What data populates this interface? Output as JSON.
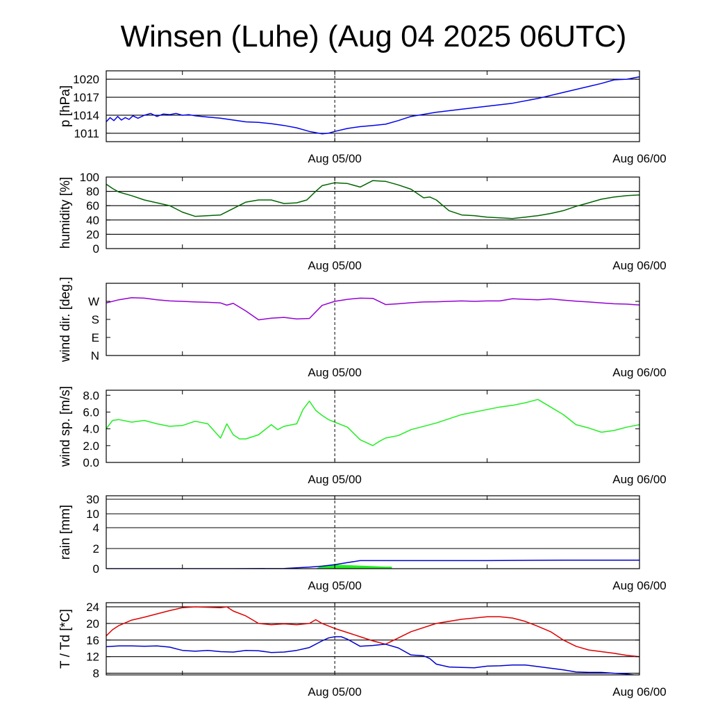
{
  "title": "Winsen (Luhe) (Aug 04 2025 06UTC)",
  "x_tick_labels": [
    "Aug 05/00",
    "Aug 06/00"
  ],
  "chart_data": [
    {
      "id": "pressure",
      "type": "line",
      "ylabel": "p [hPa]",
      "ylim": [
        1009.6,
        1021.4
      ],
      "yticks": [
        1011,
        1014,
        1017,
        1020
      ],
      "ytick_labels": [
        "1011",
        "1014",
        "1017",
        "1020"
      ],
      "gridlines": [
        1011,
        1014,
        1017,
        1020
      ],
      "x_unit": "hours since Aug 04 06UTC",
      "xlim": [
        0,
        42
      ],
      "series": [
        {
          "color": "#0000ee",
          "x": [
            0,
            0.3,
            0.6,
            0.9,
            1.2,
            1.5,
            1.8,
            2.1,
            2.5,
            3,
            3.5,
            4,
            4.5,
            5,
            5.5,
            6,
            6.5,
            7,
            8,
            9,
            10,
            11,
            12,
            13,
            14,
            15,
            15.5,
            16,
            16.5,
            17,
            17.5,
            18,
            19,
            20,
            21,
            22,
            23,
            24,
            26,
            28,
            30,
            32,
            34,
            36,
            38,
            39,
            40,
            41,
            42
          ],
          "y": [
            1012.9,
            1013.6,
            1013.1,
            1013.8,
            1013.2,
            1013.6,
            1013.3,
            1013.9,
            1013.5,
            1014.0,
            1014.3,
            1013.8,
            1014.2,
            1014.1,
            1014.3,
            1014.0,
            1014.1,
            1013.9,
            1013.7,
            1013.5,
            1013.2,
            1012.9,
            1012.8,
            1012.6,
            1012.3,
            1011.9,
            1011.6,
            1011.3,
            1011.1,
            1010.9,
            1011.0,
            1011.3,
            1011.8,
            1012.1,
            1012.3,
            1012.5,
            1013.1,
            1013.8,
            1014.5,
            1015.0,
            1015.5,
            1016.0,
            1016.8,
            1017.8,
            1018.8,
            1019.3,
            1019.9,
            1020.0,
            1020.4
          ]
        }
      ]
    },
    {
      "id": "humidity",
      "type": "line",
      "ylabel": "humidity [%]",
      "ylim": [
        0,
        100
      ],
      "yticks": [
        0,
        20,
        40,
        60,
        80,
        100
      ],
      "ytick_labels": [
        "0",
        "20",
        "40",
        "60",
        "80",
        "100"
      ],
      "gridlines": [
        20,
        40,
        60,
        80
      ],
      "x_unit": "hours since Aug 04 06UTC",
      "xlim": [
        0,
        42
      ],
      "series": [
        {
          "color": "#006400",
          "x": [
            0,
            0.5,
            1,
            2,
            3,
            4,
            5,
            6,
            7,
            8,
            9,
            10,
            11,
            12,
            13,
            14,
            15,
            15.8,
            16.5,
            17,
            18,
            19,
            20,
            21,
            22,
            23,
            24,
            25,
            25.5,
            26,
            27,
            28,
            29,
            30,
            31,
            32,
            33,
            34,
            35,
            36,
            37,
            38,
            39,
            40,
            41,
            42
          ],
          "y": [
            90,
            84,
            79,
            74,
            68,
            64,
            60,
            51,
            45,
            46,
            47,
            56,
            65,
            68,
            68,
            63,
            64,
            68,
            80,
            88,
            92,
            91,
            86,
            95,
            94,
            89,
            83,
            71,
            72,
            68,
            53,
            47,
            46,
            44,
            43,
            42,
            44,
            46,
            49,
            53,
            59,
            64,
            69,
            72,
            74,
            75
          ]
        }
      ]
    },
    {
      "id": "wind_direction",
      "type": "line",
      "ylabel": "wind dir. [deg.]",
      "ylim": [
        0,
        360
      ],
      "yticks": [
        0,
        90,
        180,
        270
      ],
      "ytick_labels": [
        "N",
        "E",
        "S",
        "W"
      ],
      "gridlines": [],
      "x_unit": "hours since Aug 04 06UTC",
      "xlim": [
        0,
        42
      ],
      "series": [
        {
          "color": "#9400d3",
          "x": [
            0,
            1,
            2,
            3,
            4,
            5,
            6,
            7,
            8,
            9,
            9.5,
            10,
            11,
            12,
            13,
            14,
            15,
            16,
            17,
            18,
            19,
            20,
            21,
            22,
            23,
            24,
            25,
            26,
            27,
            28,
            29,
            30,
            31,
            32,
            33,
            34,
            35,
            36,
            37,
            38,
            39,
            40,
            41,
            42
          ],
          "y": [
            262,
            278,
            288,
            286,
            278,
            272,
            270,
            267,
            265,
            262,
            251,
            260,
            222,
            178,
            186,
            190,
            182,
            185,
            250,
            270,
            280,
            286,
            285,
            254,
            258,
            263,
            267,
            268,
            270,
            272,
            270,
            272,
            272,
            283,
            280,
            278,
            282,
            276,
            271,
            267,
            262,
            258,
            256,
            252
          ]
        }
      ]
    },
    {
      "id": "wind_speed",
      "type": "line",
      "ylabel": "wind sp. [m/s]",
      "ylim": [
        0,
        8.6
      ],
      "yticks": [
        0,
        2,
        4,
        6,
        8
      ],
      "ytick_labels": [
        "0.0",
        "2.0",
        "4.0",
        "6.0",
        "8.0"
      ],
      "gridlines": [],
      "x_unit": "hours since Aug 04 06UTC",
      "xlim": [
        0,
        42
      ],
      "series": [
        {
          "color": "#22ee22",
          "x": [
            0,
            0.5,
            1,
            2,
            3,
            4,
            5,
            6,
            7,
            8,
            9,
            9.5,
            10,
            10.5,
            11,
            12,
            13,
            13.5,
            14,
            15,
            15.5,
            16,
            16.5,
            17,
            17.5,
            18,
            19,
            20,
            21,
            21.5,
            22,
            23,
            24,
            26,
            28,
            30,
            31,
            32,
            33,
            34,
            35,
            36,
            37,
            38,
            39,
            40,
            41,
            42
          ],
          "y": [
            4.0,
            5.0,
            5.1,
            4.8,
            5.0,
            4.6,
            4.3,
            4.4,
            4.9,
            4.6,
            2.9,
            4.6,
            3.3,
            2.8,
            2.8,
            3.3,
            4.5,
            3.9,
            4.3,
            4.6,
            6.3,
            7.3,
            6.2,
            5.6,
            5.1,
            4.8,
            4.2,
            2.7,
            2.0,
            2.5,
            2.9,
            3.2,
            3.9,
            4.7,
            5.7,
            6.3,
            6.6,
            6.8,
            7.1,
            7.5,
            6.6,
            5.7,
            4.5,
            4.1,
            3.6,
            3.8,
            4.2,
            4.5
          ]
        }
      ]
    },
    {
      "id": "rain",
      "type": "area",
      "ylabel": "rain [mm]",
      "scale": "nonlinear",
      "yticks": [
        0,
        2,
        4,
        10,
        30
      ],
      "ytick_labels": [
        "0",
        "2",
        "4",
        "10",
        "30"
      ],
      "gridlines": [
        2,
        4,
        10,
        30
      ],
      "x_unit": "hours since Aug 04 06UTC",
      "xlim": [
        0,
        42
      ],
      "series": [
        {
          "type": "area",
          "color": "#22ee22",
          "x": [
            16.5,
            17,
            18,
            19,
            20,
            21,
            22,
            22.5,
            22.5
          ],
          "y": [
            0,
            0.3,
            0.4,
            0.35,
            0.3,
            0.25,
            0.2,
            0.2,
            0
          ]
        },
        {
          "type": "line",
          "color": "#0000cd",
          "x": [
            0,
            10,
            14,
            16,
            17,
            18,
            19,
            20,
            21,
            22,
            24,
            30,
            36,
            42
          ],
          "y": [
            0,
            0,
            0.02,
            0.15,
            0.25,
            0.4,
            0.6,
            0.8,
            0.8,
            0.8,
            0.8,
            0.8,
            0.85,
            0.85
          ]
        }
      ]
    },
    {
      "id": "temperature",
      "type": "line",
      "ylabel": "T / Td [*C]",
      "ylim": [
        7.6,
        25
      ],
      "yticks": [
        8,
        12,
        16,
        20,
        24
      ],
      "ytick_labels": [
        "8",
        "12",
        "16",
        "20",
        "24"
      ],
      "gridlines": [
        8,
        12,
        16,
        20,
        24
      ],
      "x_unit": "hours since Aug 04 06UTC",
      "xlim": [
        0,
        42
      ],
      "series": [
        {
          "color": "#dd0000",
          "x": [
            0,
            0.5,
            1,
            2,
            3,
            4,
            5,
            6,
            7,
            8,
            9,
            9.5,
            10,
            11,
            12,
            13,
            14,
            15,
            16,
            16.5,
            17,
            18,
            19,
            20,
            21,
            22,
            23,
            24,
            26,
            28,
            30,
            31,
            32,
            33,
            34,
            35,
            36,
            37,
            38,
            39,
            40,
            41,
            42
          ],
          "y": [
            17.0,
            18.5,
            19.5,
            20.8,
            21.5,
            22.3,
            23.1,
            23.8,
            24.0,
            23.9,
            23.8,
            24.0,
            23.0,
            21.8,
            20.0,
            19.7,
            19.9,
            19.7,
            20.0,
            20.9,
            20.0,
            18.8,
            17.8,
            16.8,
            15.8,
            15.0,
            16.5,
            18.0,
            20.0,
            21.0,
            21.6,
            21.6,
            21.3,
            20.5,
            19.3,
            18.0,
            16.0,
            14.5,
            13.6,
            13.2,
            12.8,
            12.3,
            12.0
          ]
        },
        {
          "color": "#0000cd",
          "x": [
            0,
            1,
            2,
            3,
            4,
            5,
            6,
            7,
            8,
            9,
            10,
            11,
            12,
            13,
            14,
            15,
            16,
            17,
            17.5,
            18,
            18.5,
            19,
            20,
            21,
            22,
            23,
            24,
            25,
            25.5,
            26,
            27,
            28,
            29,
            30,
            31,
            32,
            33,
            34,
            35,
            36,
            37,
            38,
            39,
            40,
            41,
            42
          ],
          "y": [
            14.4,
            14.6,
            14.6,
            14.5,
            14.6,
            14.3,
            13.5,
            13.3,
            13.5,
            13.2,
            13.1,
            13.5,
            13.4,
            13.0,
            13.1,
            13.5,
            14.2,
            15.8,
            16.5,
            16.8,
            16.8,
            16.2,
            14.5,
            14.7,
            15.0,
            14.1,
            12.4,
            12.2,
            11.5,
            10.2,
            9.5,
            9.4,
            9.3,
            9.7,
            9.8,
            10.0,
            10.0,
            9.6,
            9.2,
            8.8,
            8.3,
            8.2,
            8.2,
            8.0,
            7.8,
            7.4
          ]
        }
      ]
    }
  ]
}
